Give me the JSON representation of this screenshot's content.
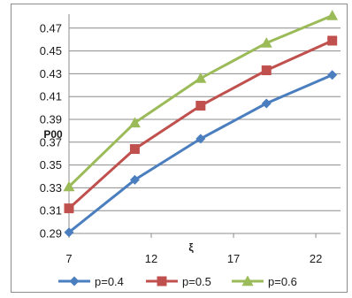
{
  "chart_data": {
    "type": "line",
    "title": "",
    "xlabel": "ξ",
    "ylabel": "P00",
    "x": [
      7,
      11,
      15,
      19,
      23
    ],
    "xlim": [
      7,
      23.5
    ],
    "xticks": [
      7,
      12,
      17,
      22
    ],
    "ylim": [
      0.29,
      0.47
    ],
    "yticks": [
      "0.29",
      "0.31",
      "0.33",
      "0.35",
      "0.37",
      "0.39",
      "0.41",
      "0.43",
      "0.45",
      "0.47"
    ],
    "grid": "horizontal",
    "legend": "bottom",
    "series": [
      {
        "name": "p=0.4",
        "color": "#4a7ebf",
        "marker": "diamond",
        "values": [
          0.291,
          0.337,
          0.373,
          0.404,
          0.429
        ]
      },
      {
        "name": "p=0.5",
        "color": "#c0504d",
        "marker": "square",
        "values": [
          0.312,
          0.364,
          0.402,
          0.433,
          0.459
        ]
      },
      {
        "name": "p=0.6",
        "color": "#9bbb59",
        "marker": "triangle",
        "values": [
          0.331,
          0.387,
          0.426,
          0.457,
          0.481
        ]
      }
    ]
  }
}
